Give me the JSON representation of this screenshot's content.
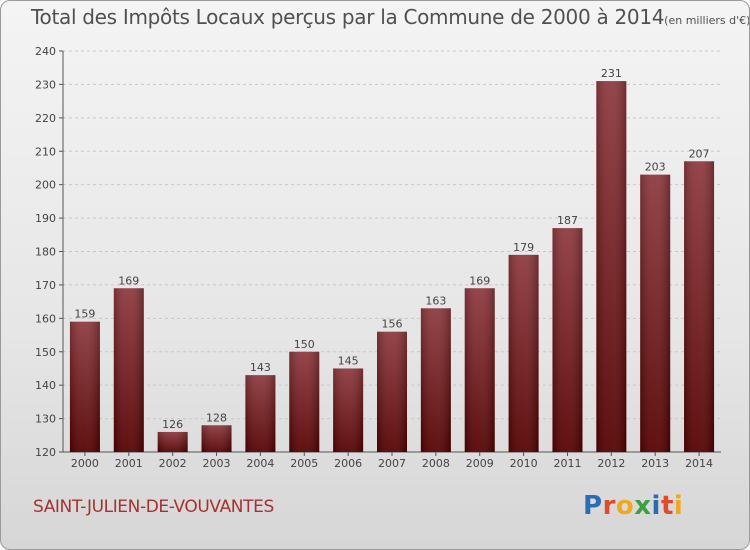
{
  "header": {
    "title": "Total des Impôts Locaux perçus par la Commune de 2000 à 2014",
    "unit": "(en milliers d'€)"
  },
  "footer": {
    "commune": "SAINT-JULIEN-DE-VOUVANTES",
    "brand": "Proxiti",
    "brand_colors": [
      "#2a6db5",
      "#e24a2a",
      "#f2a81d",
      "#3aa23a",
      "#2a6db5",
      "#e24a2a",
      "#f2a81d"
    ]
  },
  "chart_data": {
    "type": "bar",
    "title": "Total des Impôts Locaux perçus par la Commune de 2000 à 2014",
    "xlabel": "",
    "ylabel": "",
    "categories": [
      "2000",
      "2001",
      "2002",
      "2003",
      "2004",
      "2005",
      "2006",
      "2007",
      "2008",
      "2009",
      "2010",
      "2011",
      "2012",
      "2013",
      "2014"
    ],
    "values": [
      159,
      169,
      126,
      128,
      143,
      150,
      145,
      156,
      163,
      169,
      179,
      187,
      231,
      203,
      207
    ],
    "ylim": [
      120,
      240
    ],
    "yticks": [
      120,
      130,
      140,
      150,
      160,
      170,
      180,
      190,
      200,
      210,
      220,
      230,
      240
    ],
    "grid": true,
    "bar_color_top": "#8e3a3f",
    "bar_color_bottom": "#550000"
  }
}
